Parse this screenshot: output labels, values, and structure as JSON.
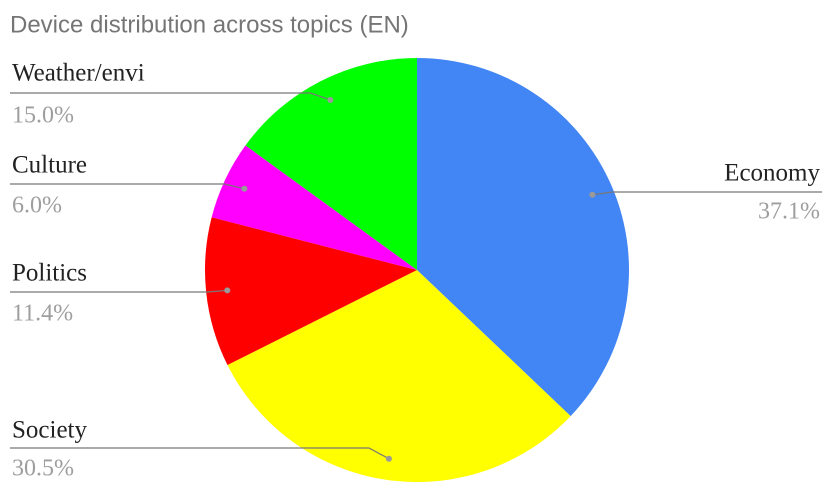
{
  "chart_data": {
    "type": "pie",
    "title": "Device distribution across topics (EN)",
    "categories": [
      "Economy",
      "Society",
      "Politics",
      "Culture",
      "Weather/envi"
    ],
    "values": [
      37.1,
      30.5,
      11.4,
      6.0,
      15.0
    ],
    "value_labels": [
      "37.1%",
      "30.5%",
      "11.4%",
      "6.0%",
      "15.0%"
    ],
    "colors": [
      "#4285f4",
      "#ffff00",
      "#ff0000",
      "#ff00ff",
      "#00ff00"
    ]
  }
}
